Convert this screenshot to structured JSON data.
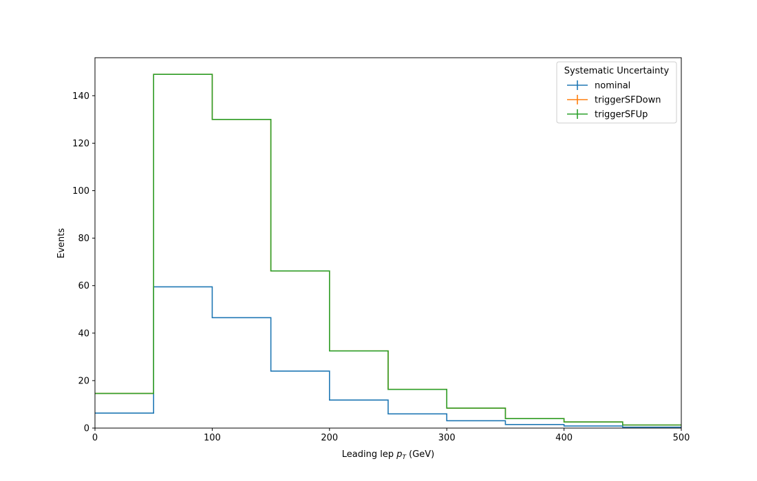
{
  "chart_data": {
    "type": "histogram-step",
    "title": "",
    "xlabel": "Leading lep",
    "xlabel_symbol": "p",
    "xlabel_subscript": "T",
    "xlabel_unit": "(GeV)",
    "ylabel": "Events",
    "xlim": [
      0,
      500
    ],
    "ylim": [
      0,
      156
    ],
    "xticks": [
      0,
      100,
      200,
      300,
      400,
      500
    ],
    "yticks": [
      0,
      20,
      40,
      60,
      80,
      100,
      120,
      140
    ],
    "bin_edges": [
      0,
      50,
      100,
      150,
      200,
      250,
      300,
      350,
      400,
      450,
      500
    ],
    "grid": false,
    "legend": {
      "title": "Systematic Uncertainty",
      "placement": "top-right"
    },
    "series": [
      {
        "name": "nominal",
        "color": "#1f77b4",
        "values": [
          6.3,
          59.5,
          46.5,
          24.0,
          11.8,
          6.0,
          3.1,
          1.5,
          0.9,
          0.4
        ]
      },
      {
        "name": "triggerSFDown",
        "color": "#ff7f0e",
        "values": [
          14.6,
          149.0,
          130.0,
          66.2,
          32.5,
          16.3,
          8.4,
          4.0,
          2.6,
          1.3
        ]
      },
      {
        "name": "triggerSFUp",
        "color": "#2ca02c",
        "values": [
          14.6,
          149.0,
          130.0,
          66.2,
          32.5,
          16.3,
          8.4,
          4.0,
          2.6,
          1.3
        ]
      }
    ]
  }
}
